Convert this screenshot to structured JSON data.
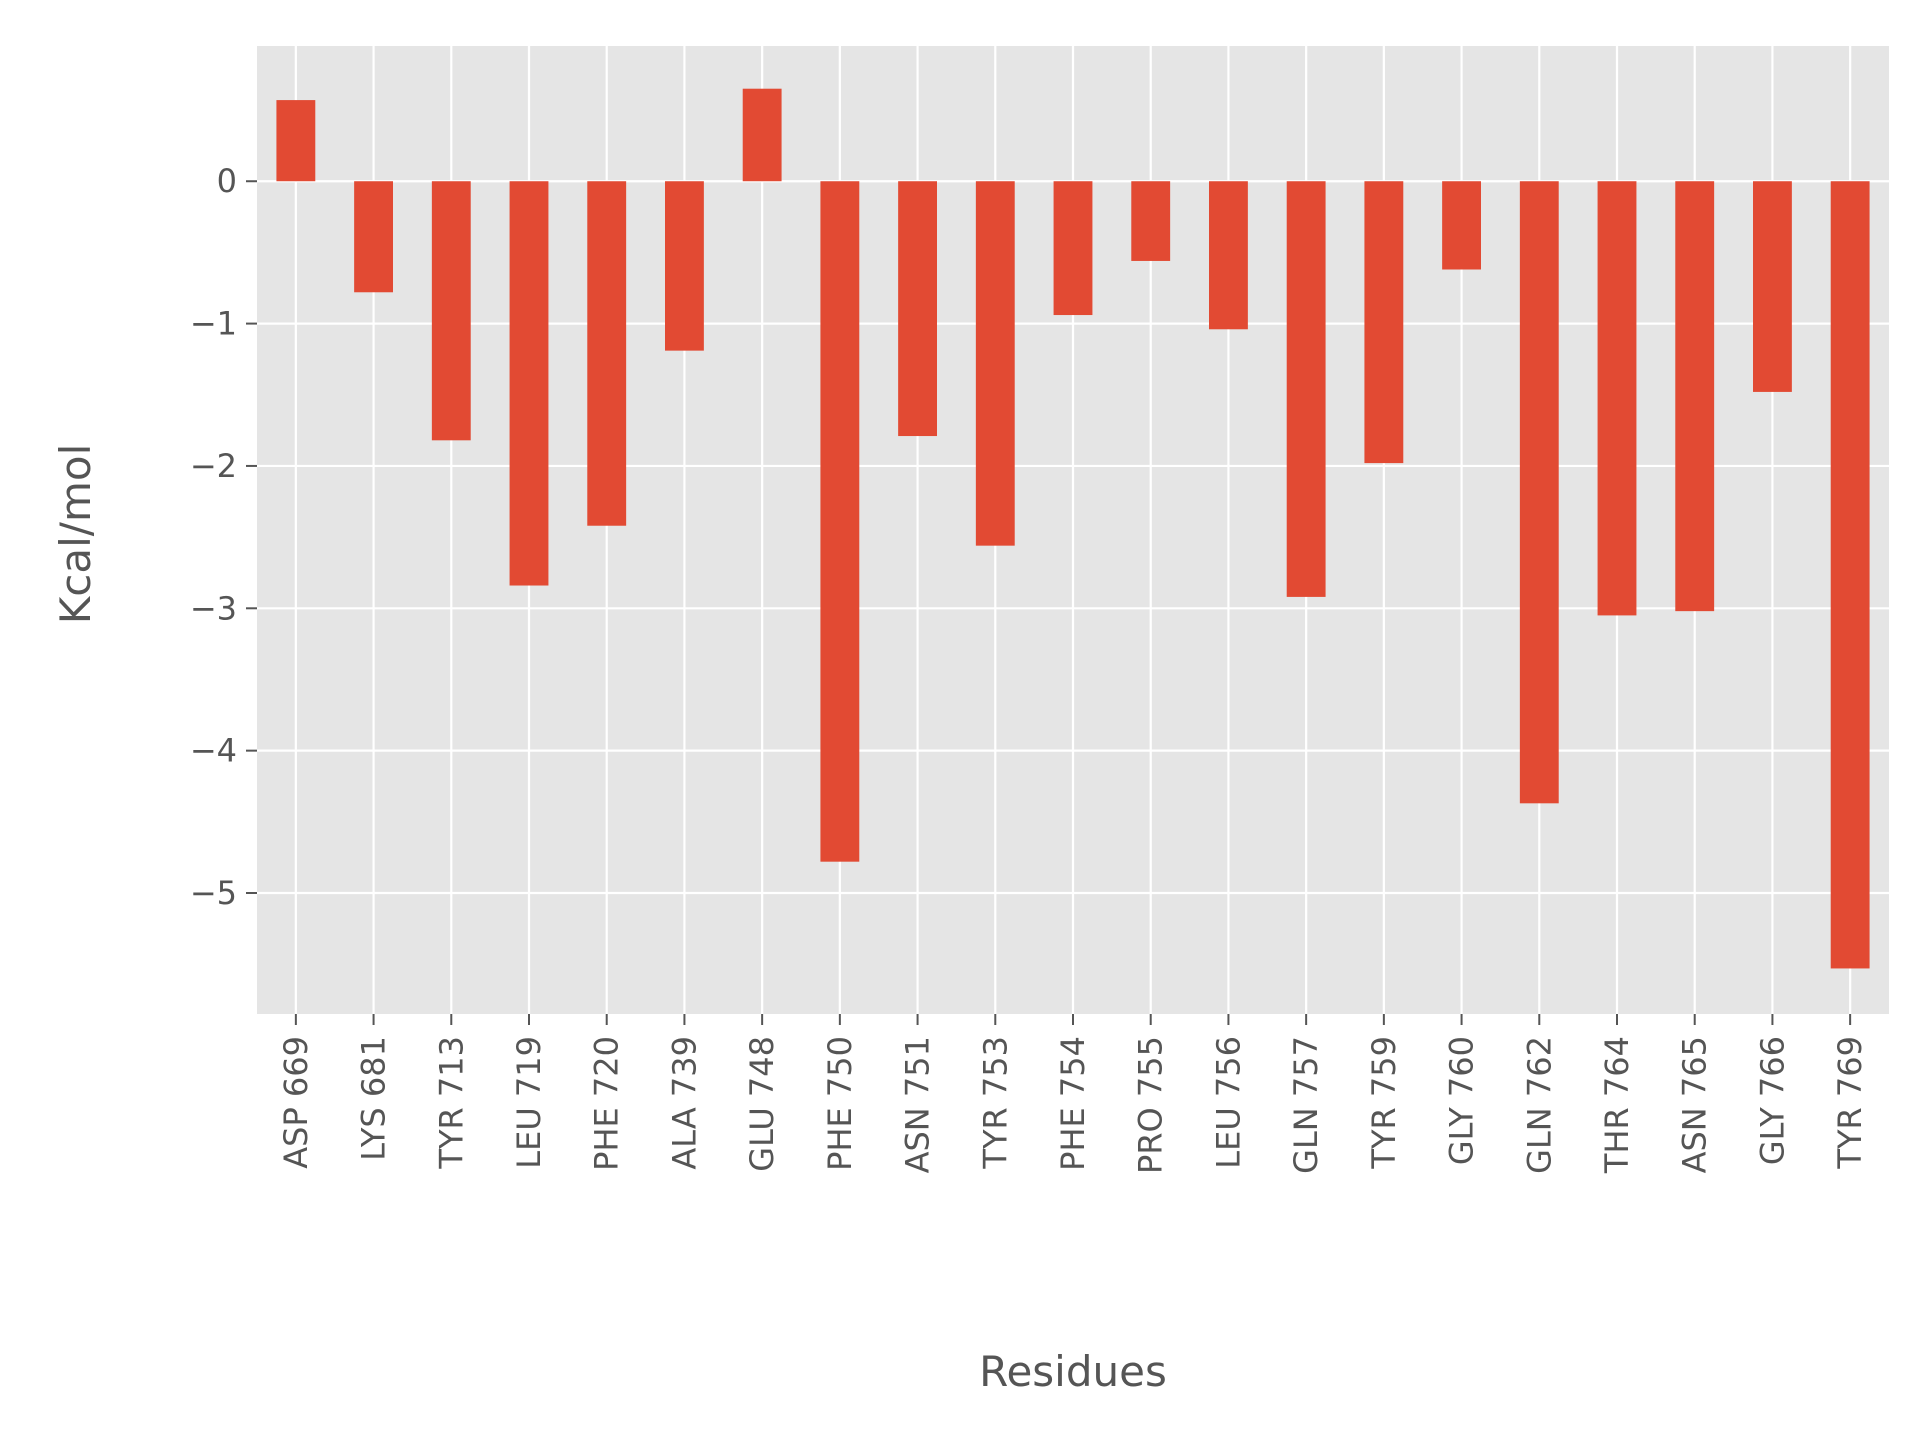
{
  "chart_data": {
    "type": "bar",
    "xlabel": "Residues",
    "ylabel": "Kcal/mol",
    "ylim": [
      -5.85,
      0.95
    ],
    "yticks": [
      0,
      -1,
      -2,
      -3,
      -4,
      -5
    ],
    "ytick_labels": [
      "0",
      "−1",
      "−2",
      "−3",
      "−4",
      "−5"
    ],
    "grid": true,
    "legend": "none",
    "categories": [
      "ASP 669",
      "LYS 681",
      "TYR 713",
      "LEU 719",
      "PHE 720",
      "ALA 739",
      "GLU 748",
      "PHE 750",
      "ASN 751",
      "TYR 753",
      "PHE 754",
      "PRO 755",
      "LEU 756",
      "GLN 757",
      "TYR 759",
      "GLY 760",
      "GLN 762",
      "THR 764",
      "ASN 765",
      "GLY 766",
      "TYR 769"
    ],
    "values": [
      0.57,
      -0.78,
      -1.82,
      -2.84,
      -2.42,
      -1.19,
      0.65,
      -4.78,
      -1.79,
      -2.56,
      -0.94,
      -0.56,
      -1.04,
      -2.92,
      -1.98,
      -0.62,
      -4.37,
      -3.05,
      -3.02,
      -1.48,
      -5.53
    ],
    "colors": {
      "bar": "#E24A33",
      "background": "#E5E5E5",
      "grid": "#FFFFFF",
      "text": "#555555"
    }
  }
}
